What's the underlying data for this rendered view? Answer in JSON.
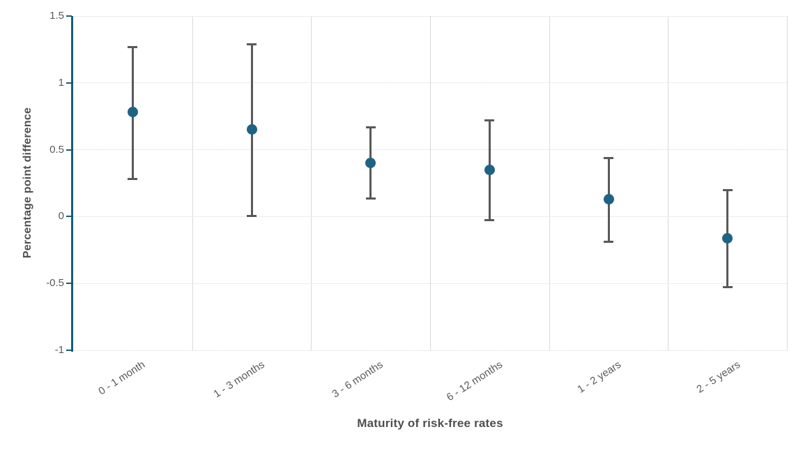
{
  "chart_data": {
    "type": "scatter",
    "title": "",
    "xlabel": "Maturity of risk-free rates",
    "ylabel": "Percentage point difference",
    "categories": [
      "0 - 1 month",
      "1 - 3 months",
      "3 - 6 months",
      "6 - 12 months",
      "1 - 2 years",
      "2 - 5 years"
    ],
    "values": [
      0.78,
      0.65,
      0.4,
      0.35,
      0.13,
      -0.16
    ],
    "ci_low": [
      0.28,
      0.0,
      0.13,
      -0.03,
      -0.19,
      -0.53
    ],
    "ci_high": [
      1.27,
      1.29,
      0.67,
      0.72,
      0.44,
      0.2
    ],
    "ylim": [
      -1,
      1.5
    ],
    "ytick_values": [
      1.5,
      1,
      0.5,
      0,
      -0.5,
      -1
    ],
    "ytick_labels": [
      "1.5",
      "1",
      "0.5",
      "0",
      "-0.5",
      "-1"
    ],
    "grid": true,
    "legend": "none",
    "marker_style": "circle-with-error-bars",
    "colors": {
      "marker": "#1f6384",
      "error_bar": "#595959",
      "axis_line": "#175d73",
      "gridline": "#d9d9d9",
      "tick_label": "#595959",
      "axis_title": "#4f4f4f",
      "background": "#ffffff"
    }
  }
}
